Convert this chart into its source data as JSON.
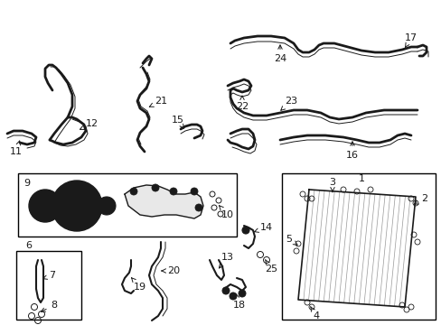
{
  "bg_color": "#ffffff",
  "line_color": "#1a1a1a",
  "box_color": "#000000",
  "fig_width": 4.89,
  "fig_height": 3.6,
  "dpi": 100
}
